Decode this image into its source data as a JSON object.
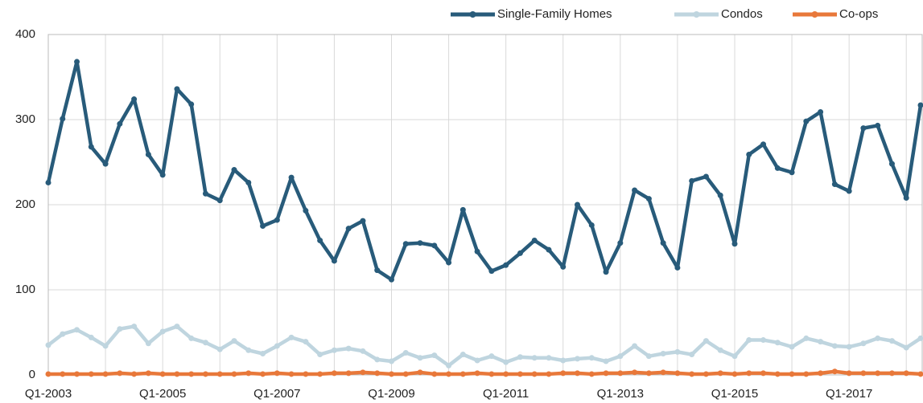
{
  "chart_data": {
    "type": "line",
    "categories": [
      "Q1-2003",
      null,
      null,
      null,
      null,
      null,
      null,
      null,
      "Q1-2005",
      null,
      null,
      null,
      null,
      null,
      null,
      null,
      "Q1-2007",
      null,
      null,
      null,
      null,
      null,
      null,
      null,
      "Q1-2009",
      null,
      null,
      null,
      null,
      null,
      null,
      null,
      "Q1-2011",
      null,
      null,
      null,
      null,
      null,
      null,
      null,
      "Q1-2013",
      null,
      null,
      null,
      null,
      null,
      null,
      null,
      "Q1-2015",
      null,
      null,
      null,
      null,
      null,
      null,
      null,
      "Q1-2017",
      null,
      null,
      null,
      null,
      null
    ],
    "series": [
      {
        "name": "Single-Family Homes",
        "color": "#285b7a",
        "values": [
          226,
          301,
          368,
          268,
          248,
          295,
          324,
          259,
          235,
          336,
          318,
          213,
          205,
          241,
          226,
          175,
          182,
          232,
          193,
          158,
          134,
          172,
          181,
          123,
          112,
          154,
          155,
          152,
          132,
          194,
          145,
          122,
          129,
          143,
          158,
          147,
          127,
          200,
          176,
          121,
          155,
          217,
          207,
          155,
          126,
          228,
          233,
          211,
          154,
          259,
          271,
          243,
          238,
          298,
          309,
          224,
          216,
          290,
          293,
          248,
          208,
          317
        ]
      },
      {
        "name": "Condos",
        "color": "#bfd5df",
        "values": [
          35,
          48,
          53,
          44,
          34,
          54,
          57,
          37,
          51,
          57,
          43,
          38,
          30,
          40,
          29,
          25,
          34,
          44,
          39,
          24,
          29,
          31,
          28,
          18,
          16,
          26,
          20,
          23,
          11,
          24,
          17,
          22,
          15,
          21,
          20,
          20,
          17,
          19,
          20,
          16,
          22,
          34,
          22,
          25,
          27,
          24,
          40,
          29,
          22,
          41,
          41,
          38,
          33,
          43,
          39,
          34,
          33,
          37,
          43,
          40,
          32,
          43
        ]
      },
      {
        "name": "Co-ops",
        "color": "#e8783a",
        "values": [
          1,
          1,
          1,
          1,
          1,
          2,
          1,
          2,
          1,
          1,
          1,
          1,
          1,
          1,
          2,
          1,
          2,
          1,
          1,
          1,
          2,
          2,
          3,
          2,
          1,
          1,
          3,
          1,
          1,
          1,
          2,
          1,
          1,
          1,
          1,
          1,
          2,
          2,
          1,
          2,
          2,
          3,
          2,
          3,
          2,
          1,
          1,
          2,
          1,
          2,
          2,
          1,
          1,
          1,
          2,
          4,
          2,
          2,
          2,
          2,
          2,
          1
        ]
      }
    ],
    "ylim": [
      0,
      400
    ],
    "yticks": [
      0,
      100,
      200,
      300,
      400
    ],
    "grid": true,
    "legend": "top-right"
  }
}
